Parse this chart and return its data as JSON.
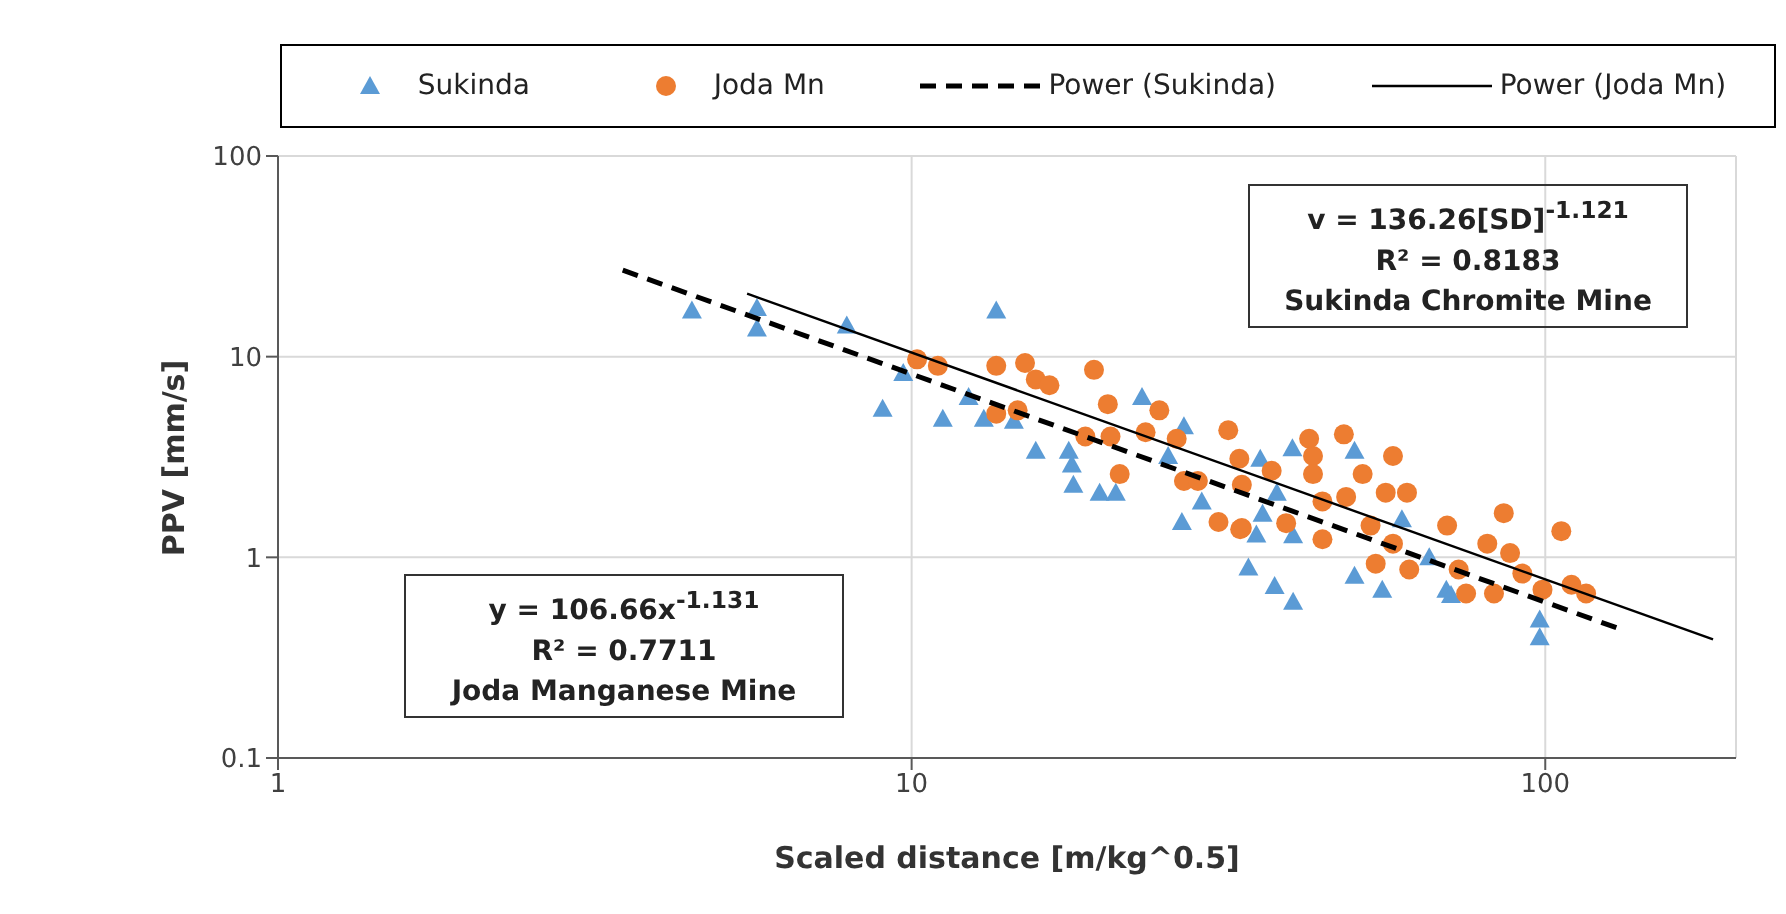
{
  "chart_data": {
    "type": "scatter",
    "xlabel": "Scaled distance [m/kg^0.5]",
    "ylabel": "PPV [mm/s]",
    "log": "xy",
    "xlim": [
      1,
      200
    ],
    "xticks": [
      1,
      10,
      100
    ],
    "ylim": [
      0.1,
      100
    ],
    "yticks": [
      0.1,
      1,
      10,
      100
    ],
    "grid": true,
    "legend": "top",
    "series": [
      {
        "name": "Sukinda",
        "marker": "triangle",
        "color": "#5b9bd5",
        "x": [
          4.5,
          5.7,
          5.7,
          7.9,
          9.0,
          9.7,
          11.2,
          13.0,
          13.6,
          14.5,
          12.3,
          15.7,
          17.7,
          17.9,
          18.0,
          19.8,
          21.0,
          23.1,
          26.9,
          25.4,
          26.7,
          30.3,
          34.0,
          37.4,
          35.0,
          35.5,
          28.7,
          35.8,
          39.9,
          50,
          40,
          50,
          55.3,
          69.8,
          71,
          98,
          98,
          37.7,
          40,
          59.4,
          65.6
        ],
        "values": [
          17,
          17.5,
          13.8,
          14.3,
          5.5,
          8.3,
          4.9,
          4.9,
          17,
          4.8,
          6.3,
          3.4,
          3.4,
          2.9,
          2.3,
          2.1,
          2.1,
          6.3,
          4.5,
          3.2,
          1.5,
          null,
          0.89,
          0.72,
          1.3,
          3.1,
          1.9,
          1.65,
          3.5,
          3.4,
          0.6,
          0.81,
          0.69,
          0.69,
          0.65,
          0.49,
          0.4,
          2.1,
          1.29,
          1.55,
          1.0
        ]
      },
      {
        "name": "Joda Mn",
        "marker": "circle",
        "color": "#ed7d31",
        "x": [
          10.2,
          11.0,
          13.6,
          15.1,
          15.7,
          16.5,
          19.4,
          13.6,
          14.7,
          20.4,
          24.6,
          31.6,
          20.6,
          18.8,
          21.3,
          23.4,
          26.2,
          26.9,
          28.3,
          33.2,
          32.9,
          30.5,
          33.2,
          37.0,
          48.1,
          42.4,
          43,
          43,
          57.5,
          51.5,
          56,
          60.5,
          48.5,
          44.5,
          39,
          33,
          44.5,
          53,
          70,
          86,
          81,
          57.5,
          54,
          61,
          75,
          83,
          92,
          99,
          106,
          110,
          116,
          73,
          88
        ],
        "values": [
          9.7,
          9.0,
          9.0,
          9.3,
          7.7,
          7.2,
          8.6,
          5.2,
          5.4,
          5.8,
          5.4,
          4.3,
          4.0,
          4.0,
          2.6,
          4.2,
          3.9,
          2.4,
          2.4,
          2.3,
          3.1,
          1.5,
          1.4,
          2.7,
          4.1,
          3.9,
          3.2,
          2.6,
          3.2,
          2.6,
          2.1,
          2.1,
          2.0,
          1.9,
          1.48,
          1.38,
          1.23,
          1.44,
          1.44,
          1.66,
          1.17,
          1.17,
          0.93,
          0.87,
          0.66,
          0.66,
          0.83,
          0.69,
          1.35,
          0.73,
          0.66,
          0.87,
          1.05
        ]
      },
      {
        "name": "Power (Sukinda)",
        "type": "line",
        "marker": "none",
        "line_style": "dashed",
        "color": "#000000",
        "x": [
          3.5,
          131
        ],
        "values": [
          27,
          0.44
        ]
      },
      {
        "name": "Power (Joda Mn)",
        "type": "line",
        "marker": "none",
        "line_style": "solid",
        "color": "#000000",
        "x": [
          5.5,
          184
        ],
        "values": [
          20.6,
          0.39
        ]
      }
    ],
    "annotations": [
      "v = 136.26[SD]$^{-1.121}$\nR² = 0.8183\nSukinda  Chromite Mine",
      "y = 106.66x$^{-1.131}$\nR² = 0.7711\nJoda Manganese  Mine"
    ]
  }
}
